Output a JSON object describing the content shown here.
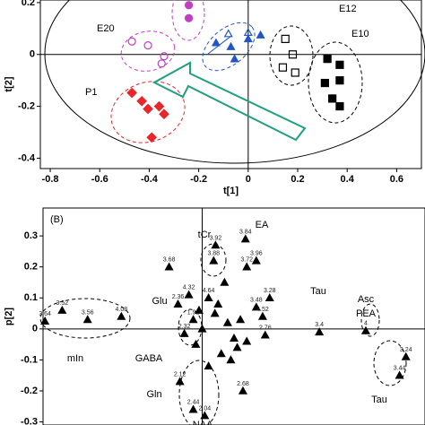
{
  "chart_data": [
    {
      "type": "scatter",
      "x_label": "t[1]",
      "y_label": "t[2]",
      "xlim": [
        -0.84,
        0.7
      ],
      "ylim": [
        -0.44,
        0.21
      ],
      "xticks": [
        -0.8,
        -0.6,
        -0.4,
        -0.2,
        0,
        0.2,
        0.4,
        0.6
      ],
      "yticks": [
        -0.4,
        -0.2,
        0,
        0.2
      ],
      "series": [
        {
          "name": "P1",
          "color": "#e8262b",
          "marker": "diamond",
          "filled": true,
          "x": [
            -0.47,
            -0.43,
            -0.405,
            -0.36,
            -0.34,
            -0.39
          ],
          "values": [
            -0.148,
            -0.18,
            -0.21,
            -0.2,
            -0.23,
            -0.32
          ]
        },
        {
          "name": "E20",
          "color": "#c040c0",
          "marker": "circle",
          "filled": false,
          "x": [
            -0.47,
            -0.405,
            -0.34,
            -0.35
          ],
          "values": [
            0.05,
            0.035,
            -0.007,
            -0.035
          ]
        },
        {
          "name": null,
          "color": "#c040c0",
          "marker": "circle",
          "filled": true,
          "x": [
            -0.24,
            -0.24
          ],
          "values": [
            0.19,
            0.14
          ]
        },
        {
          "name": null,
          "color": "#2255c8",
          "marker": "triangle",
          "filled": false,
          "x": [
            -0.08,
            0
          ],
          "values": [
            0.08,
            0.085
          ]
        },
        {
          "name": null,
          "color": "#2255c8",
          "marker": "triangle",
          "filled": true,
          "x": [
            -0.13,
            -0.07,
            -0.055,
            0,
            0.05
          ],
          "values": [
            0.045,
            0.03,
            -0.017,
            0.06,
            0.075
          ]
        },
        {
          "name": "E12",
          "color": "#000000",
          "marker": "square",
          "filled": false,
          "x": [
            0.15,
            0.18,
            0.14,
            0.19
          ],
          "values": [
            0.06,
            0,
            -0.05,
            -0.07
          ]
        },
        {
          "name": "E10",
          "color": "#000000",
          "marker": "square",
          "filled": true,
          "x": [
            0.32,
            0.37,
            0.37,
            0.31,
            0.34,
            0.37
          ],
          "values": [
            -0.017,
            -0.04,
            -0.1,
            -0.11,
            -0.17,
            -0.2
          ]
        }
      ]
    },
    {
      "type": "scatter",
      "panel_label": "(B)",
      "y_label": "p[2]",
      "xlim": [
        -0.25,
        0.35
      ],
      "ylim": [
        -0.31,
        0.39
      ],
      "yticks": [
        0.3,
        0.2,
        0.1,
        0,
        -0.1,
        -0.2,
        -0.3
      ],
      "series": [
        {
          "name": null,
          "color": "#000000",
          "marker": "triangle",
          "filled": true,
          "x": [
            0.021,
            0.018,
            0.068,
            0.085,
            0.07,
            -0.052,
            -0.22,
            -0.18,
            -0.247,
            -0.127,
            -0.021,
            -0.038,
            -0.028,
            0.01,
            0.085,
            0.106,
            0.184,
            0.095,
            0.099,
            -0.014,
            -0.035,
            -0.014,
            0.004,
            0.064,
            0.257,
            0.32,
            0.31,
            0.02,
            0.04,
            0.05,
            0.0,
            -0.01,
            0.03,
            0.06,
            0.045,
            0.025,
            0.01,
            0.07,
            -0.005,
            0.035,
            0.055
          ],
          "values": [
            0.27,
            0.22,
            0.29,
            0.22,
            0.2,
            0.2,
            0.06,
            0.03,
            0.025,
            0.04,
            0.11,
            0.08,
            -0.015,
            0.1,
            0.07,
            0.1,
            -0.01,
            0.04,
            -0.02,
            0.03,
            -0.17,
            -0.26,
            -0.28,
            -0.2,
            -0.006,
            -0.09,
            -0.15,
            0.05,
            0.02,
            -0.03,
            0.0,
            -0.05,
            -0.08,
            0.03,
            -0.1,
            0.08,
            -0.12,
            -0.04,
            0.06,
            0.15,
            -0.06
          ],
          "labels": [
            "3.92",
            "3.88",
            "3.84",
            "3.96",
            "3.72",
            "3.68",
            "3.52",
            "3.56",
            "3.64",
            "4.08",
            "4.32",
            "2.36",
            "2.32",
            "4.64",
            "3.48",
            "3.28",
            "3.4",
            "4.52",
            "2.76",
            "1.92",
            "2.12",
            "2.44",
            "2.04",
            "2.68",
            "4",
            "3.24",
            "3.44",
            null,
            null,
            null,
            null,
            null,
            null,
            null,
            null,
            null,
            null,
            null,
            null,
            null,
            null
          ]
        }
      ],
      "annotations": [
        "tCr",
        "EA",
        "Glu",
        "GABA",
        "Gln",
        "mIn",
        "Tau",
        "Asc",
        "PEA",
        "Tau",
        "NAA"
      ]
    }
  ]
}
